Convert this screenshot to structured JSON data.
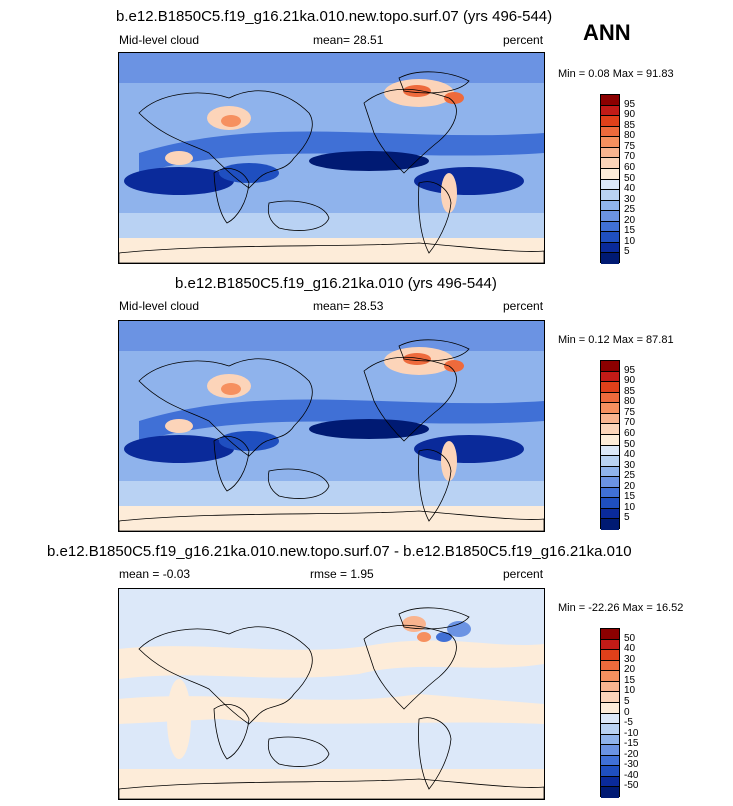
{
  "season": "ANN",
  "chart_data": [
    {
      "type": "heatmap",
      "title": "b.e12.B1850C5.f19_g16.21ka.010.new.topo.surf.07 (yrs 496-544)",
      "left_label": "Mid-level cloud",
      "center_label": "mean=  28.51",
      "units": "percent",
      "minmax": "Min =  0.08 Max =  91.83",
      "min": 0.08,
      "max": 91.83,
      "mean": 28.51,
      "levels": [
        "95",
        "90",
        "85",
        "80",
        "75",
        "70",
        "60",
        "50",
        "40",
        "30",
        "25",
        "20",
        "15",
        "10",
        "5"
      ],
      "colors": [
        "#8b0000",
        "#c11b17",
        "#e0401a",
        "#ee6a3c",
        "#f6905f",
        "#f9b48f",
        "#fcd4b9",
        "#fdecd9",
        "#dce8f9",
        "#b9d2f3",
        "#8fb3ec",
        "#6b93e3",
        "#4070d6",
        "#1f4fc0",
        "#0a2a9a",
        "#001a73"
      ]
    },
    {
      "type": "heatmap",
      "title": "b.e12.B1850C5.f19_g16.21ka.010 (yrs 496-544)",
      "left_label": "Mid-level cloud",
      "center_label": "mean=  28.53",
      "units": "percent",
      "minmax": "Min =  0.12 Max =  87.81",
      "min": 0.12,
      "max": 87.81,
      "mean": 28.53,
      "levels": [
        "95",
        "90",
        "85",
        "80",
        "75",
        "70",
        "60",
        "50",
        "40",
        "30",
        "25",
        "20",
        "15",
        "10",
        "5"
      ],
      "colors": [
        "#8b0000",
        "#c11b17",
        "#e0401a",
        "#ee6a3c",
        "#f6905f",
        "#f9b48f",
        "#fcd4b9",
        "#fdecd9",
        "#dce8f9",
        "#b9d2f3",
        "#8fb3ec",
        "#6b93e3",
        "#4070d6",
        "#1f4fc0",
        "#0a2a9a",
        "#001a73"
      ]
    },
    {
      "type": "heatmap",
      "title": "b.e12.B1850C5.f19_g16.21ka.010.new.topo.surf.07 - b.e12.B1850C5.f19_g16.21ka.010",
      "left_label": "mean =  -0.03",
      "center_label": "rmse =   1.95",
      "units": "percent",
      "minmax": "Min = -22.26 Max =  16.52",
      "min": -22.26,
      "max": 16.52,
      "mean": -0.03,
      "rmse": 1.95,
      "levels": [
        "50",
        "40",
        "30",
        "20",
        "15",
        "10",
        "5",
        "0",
        "-5",
        "-10",
        "-15",
        "-20",
        "-30",
        "-40",
        "-50"
      ],
      "colors": [
        "#8b0000",
        "#c11b17",
        "#e0401a",
        "#ee6a3c",
        "#f6905f",
        "#f9b48f",
        "#fcd4b9",
        "#fdecd9",
        "#dce8f9",
        "#b9d2f3",
        "#8fb3ec",
        "#6b93e3",
        "#4070d6",
        "#1f4fc0",
        "#0a2a9a",
        "#001a73"
      ]
    }
  ]
}
